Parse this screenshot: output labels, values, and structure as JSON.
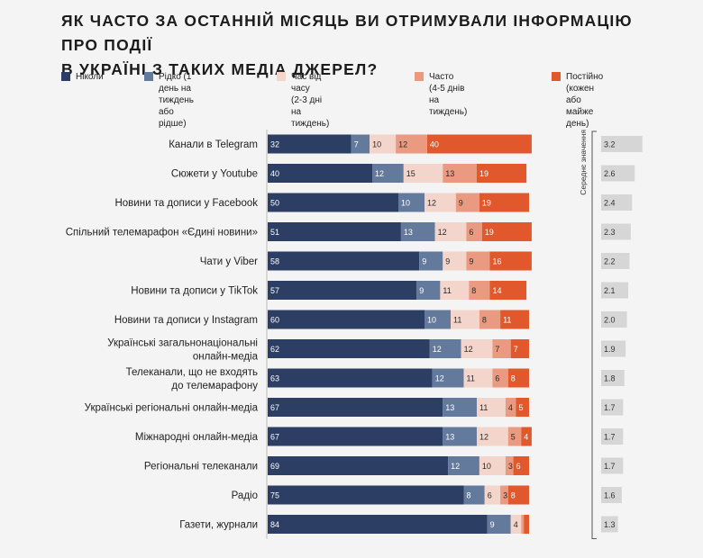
{
  "title": "Як часто за останній місяць ви отримували інформацію про події\nв Україні з таких медіа джерел?",
  "legend": [
    {
      "label": "Ніколи",
      "color": "#2c3e63"
    },
    {
      "label": "Рідко (1 день на\nтиждень або рідше)",
      "color": "#647a9c"
    },
    {
      "label": "Час від часу\n(2-3 дні на тиждень)",
      "color": "#f4d5cb"
    },
    {
      "label": "Часто\n(4-5 днів на тиждень)",
      "color": "#e99a80"
    },
    {
      "label": "Постійно (кожен\nабо майже день)",
      "color": "#e0582c"
    }
  ],
  "avg_axis_label": "Середнє значення",
  "chart_data": {
    "type": "bar",
    "orientation": "horizontal",
    "stacked": true,
    "title": "Як часто за останній місяць ви отримували інформацію про події в Україні з таких медіа джерел?",
    "categories": [
      "Канали в Telegram",
      "Сюжети у Youtube",
      "Новини та дописи у Facebook",
      "Спільний телемарафон «Єдині новини»",
      "Чати у Viber",
      "Новини та дописи у TikTok",
      "Новини та дописи у Instagram",
      "Українські загальнонаціональні\nонлайн-медіа",
      "Телеканали, що не входять\nдо телемарафону",
      "Українські регіональні онлайн-медіа",
      "Міжнародні онлайн-медіа",
      "Регіональні телеканали",
      "Радіо",
      "Газети, журнали"
    ],
    "series": [
      {
        "name": "Ніколи",
        "values": [
          32,
          40,
          50,
          51,
          58,
          57,
          60,
          62,
          63,
          67,
          67,
          69,
          75,
          84
        ]
      },
      {
        "name": "Рідко (1 день на тиждень або рідше)",
        "values": [
          7,
          12,
          10,
          13,
          9,
          9,
          10,
          12,
          12,
          13,
          13,
          12,
          8,
          9
        ]
      },
      {
        "name": "Час від часу (2-3 дні на тиждень)",
        "values": [
          10,
          15,
          12,
          12,
          9,
          11,
          11,
          12,
          11,
          11,
          12,
          10,
          6,
          4
        ]
      },
      {
        "name": "Часто (4-5 днів на тиждень)",
        "values": [
          12,
          13,
          9,
          6,
          9,
          8,
          8,
          7,
          6,
          4,
          5,
          3,
          3,
          1
        ]
      },
      {
        "name": "Постійно (кожен або майже день)",
        "values": [
          40,
          19,
          19,
          19,
          16,
          14,
          11,
          7,
          8,
          5,
          4,
          6,
          8,
          2
        ]
      }
    ],
    "averages": [
      3.2,
      2.6,
      2.4,
      2.3,
      2.2,
      2.1,
      2.0,
      1.9,
      1.8,
      1.7,
      1.7,
      1.7,
      1.6,
      1.3
    ],
    "average_labels": [
      "3.2",
      "2.6",
      "2.4",
      "2.3",
      "2.2",
      "2.1",
      "2.0",
      "1.9",
      "1.8",
      "1.7",
      "1.7",
      "1.7",
      "1.6",
      "1.3"
    ],
    "xlim": [
      0,
      100
    ],
    "xlabel": "",
    "ylabel": "",
    "grid": false
  }
}
